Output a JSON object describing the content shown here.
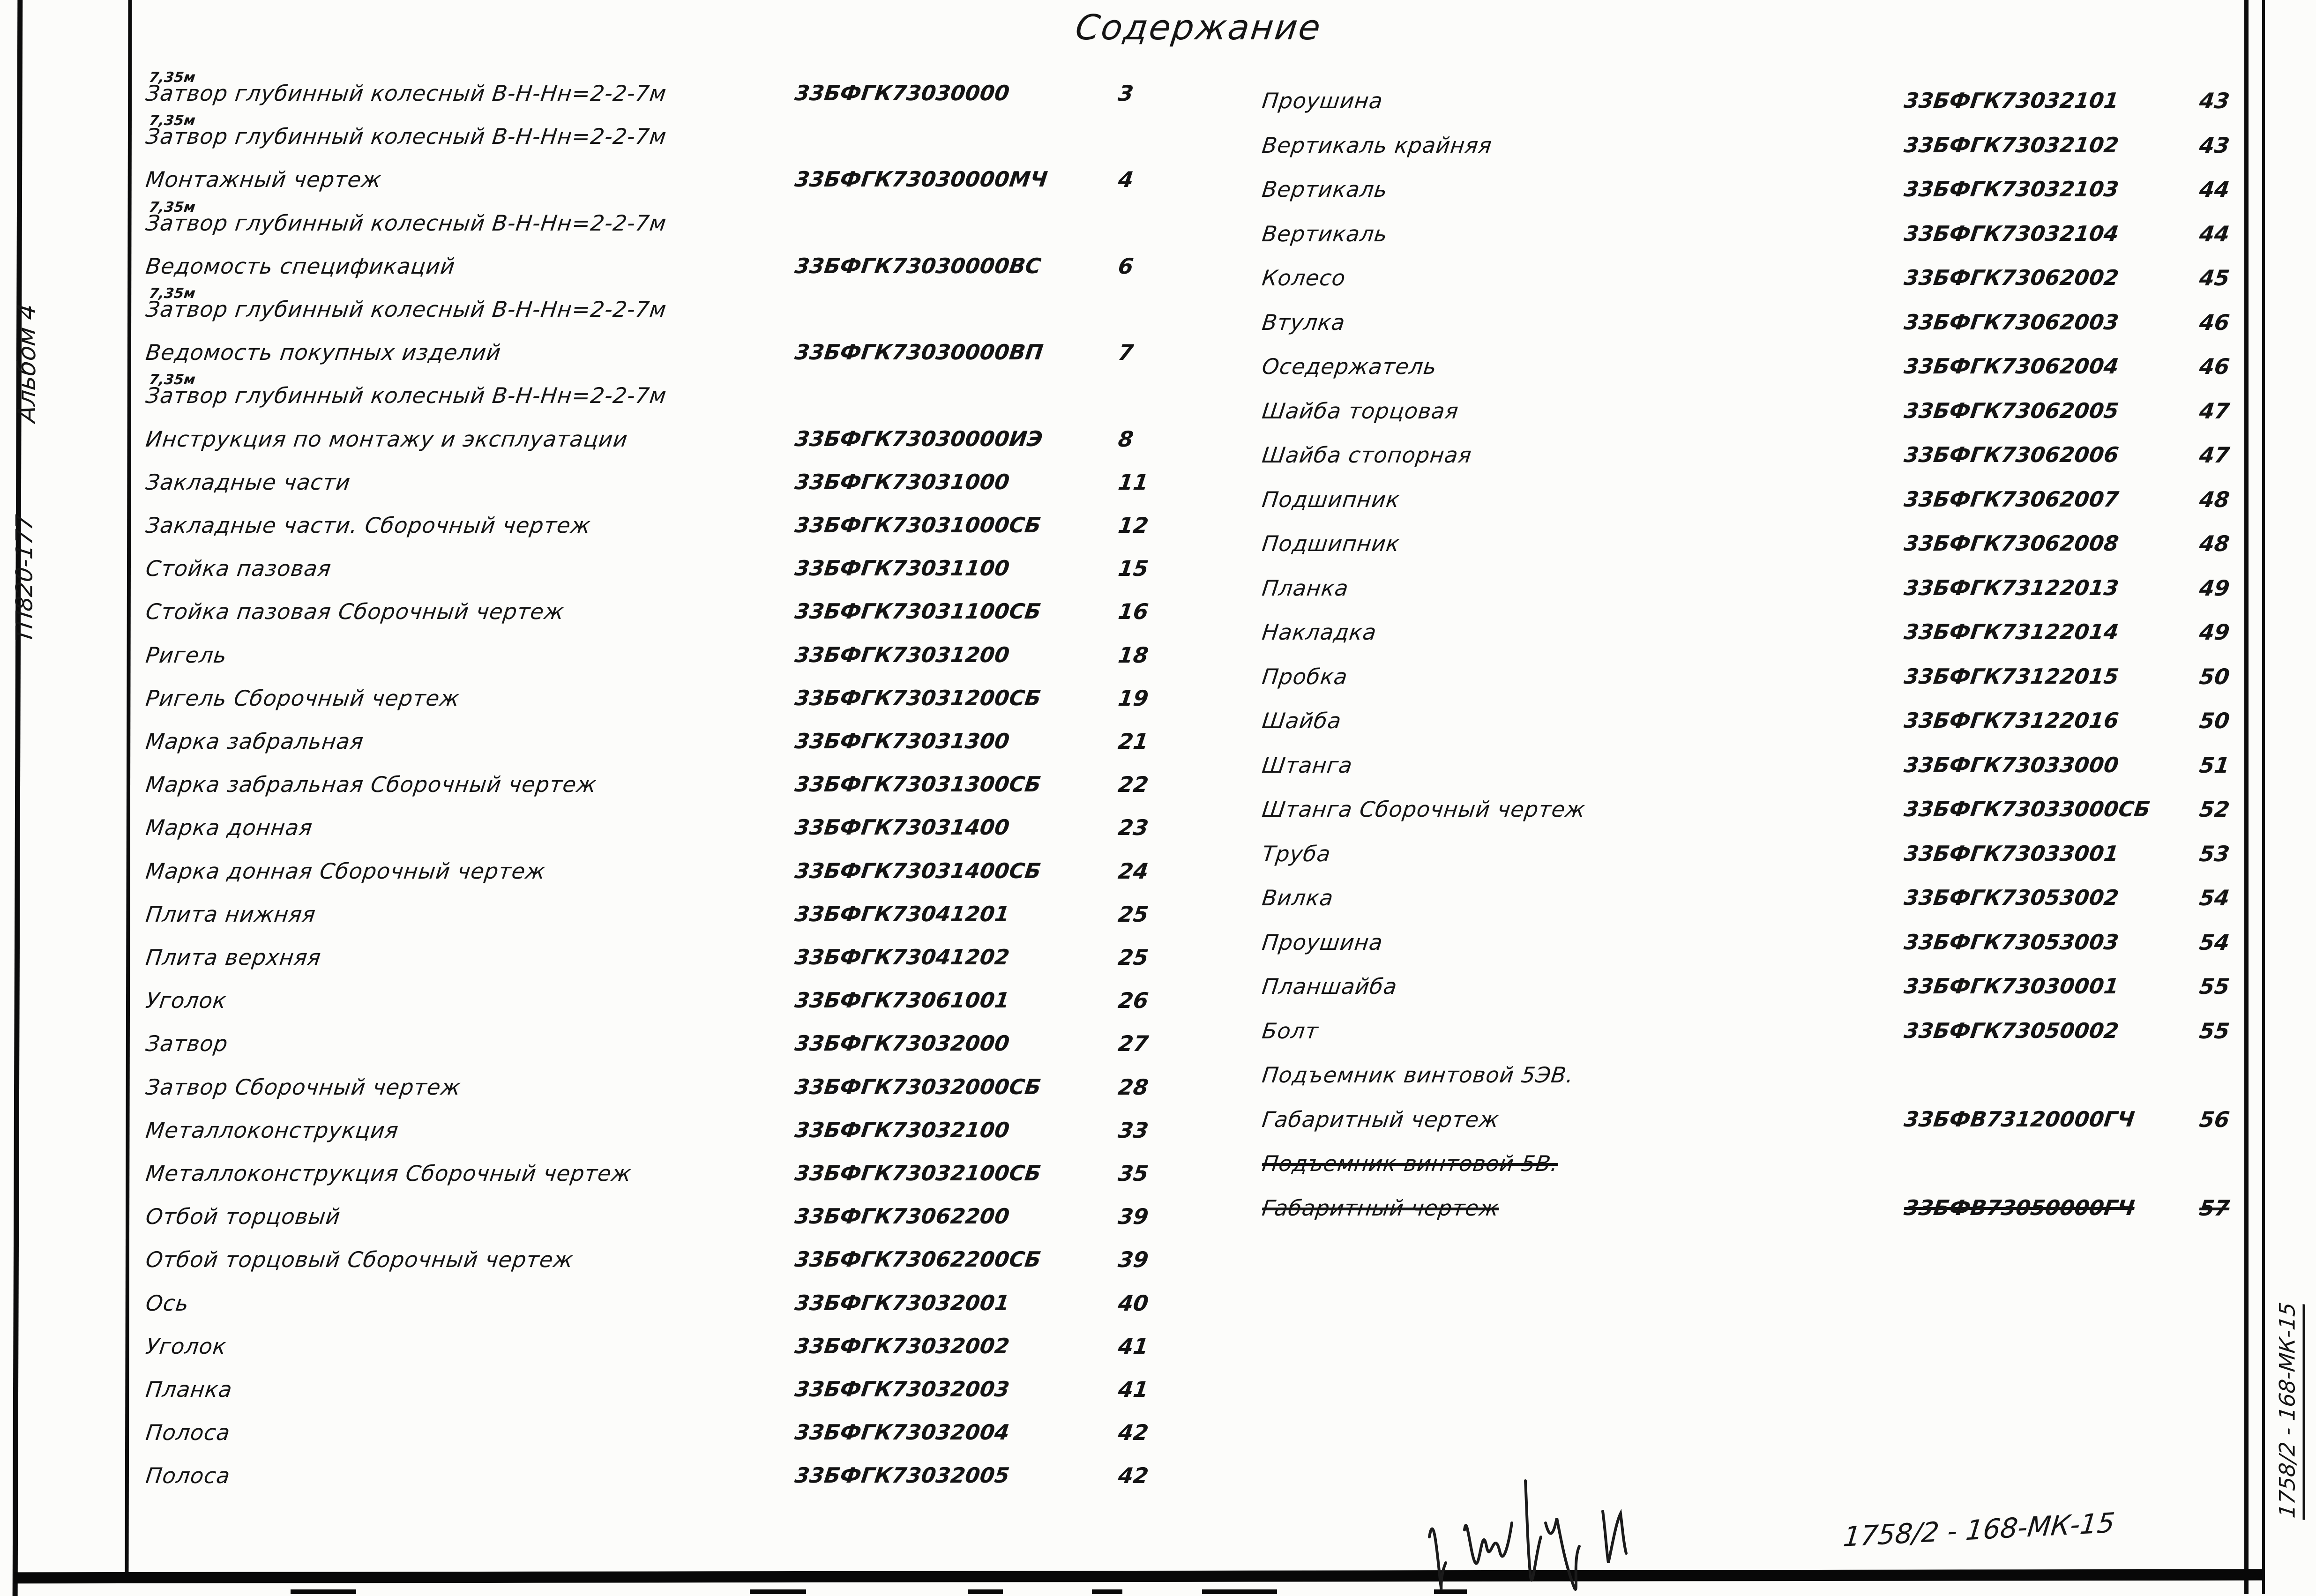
{
  "page": {
    "title": "Содержание"
  },
  "margin_left": {
    "album": "Альбом 4",
    "project": "ТП820-177"
  },
  "margin_right": {
    "code": "1758/2 - 168-МК-15"
  },
  "footer": {
    "code": "1758/2 - 168-МК-15"
  },
  "toc": {
    "left": [
      {
        "title": "Затвор глубинный колесный В-Н-Нн=2-2-7м",
        "sup": "7,35м",
        "num": "33БФГК73030000",
        "page": "3"
      },
      {
        "title": "Затвор глубинный колесный В-Н-Нн=2-2-7м",
        "sup": "7,35м"
      },
      {
        "title": "Монтажный чертеж",
        "num": "33БФГК73030000МЧ",
        "page": "4"
      },
      {
        "title": "Затвор глубинный колесный В-Н-Нн=2-2-7м",
        "sup": "7,35м"
      },
      {
        "title": "Ведомость спецификаций",
        "num": "33БФГК73030000ВС",
        "page": "6"
      },
      {
        "title": "Затвор глубинный колесный В-Н-Нн=2-2-7м",
        "sup": "7,35м"
      },
      {
        "title": "Ведомость покупных изделий",
        "num": "33БФГК73030000ВП",
        "page": "7"
      },
      {
        "title": "Затвор глубинный колесный В-Н-Нн=2-2-7м",
        "sup": "7,35м"
      },
      {
        "title": "Инструкция по монтажу и эксплуатации",
        "num": "33БФГК73030000ИЭ",
        "page": "8"
      },
      {
        "title": "Закладные части",
        "num": "33БФГК73031000",
        "page": "11"
      },
      {
        "title": "Закладные части. Сборочный чертеж",
        "num": "33БФГК73031000СБ",
        "page": "12"
      },
      {
        "title": "Стойка пазовая",
        "num": "33БФГК73031100",
        "page": "15"
      },
      {
        "title": "Стойка пазовая Сборочный чертеж",
        "num": "33БФГК73031100СБ",
        "page": "16"
      },
      {
        "title": "Ригель",
        "num": "33БФГК73031200",
        "page": "18"
      },
      {
        "title": "Ригель Сборочный чертеж",
        "num": "33БФГК73031200СБ",
        "page": "19"
      },
      {
        "title": "Марка забральная",
        "num": "33БФГК73031300",
        "page": "21"
      },
      {
        "title": "Марка забральная Сборочный чертеж",
        "num": "33БФГК73031300СБ",
        "page": "22"
      },
      {
        "title": "Марка донная",
        "num": "33БФГК73031400",
        "page": "23"
      },
      {
        "title": "Марка донная Сборочный чертеж",
        "num": "33БФГК73031400СБ",
        "page": "24"
      },
      {
        "title": "Плита нижняя",
        "num": "33БФГК73041201",
        "page": "25"
      },
      {
        "title": "Плита верхняя",
        "num": "33БФГК73041202",
        "page": "25"
      },
      {
        "title": "Уголок",
        "num": "33БФГК73061001",
        "page": "26"
      },
      {
        "title": "Затвор",
        "num": "33БФГК73032000",
        "page": "27"
      },
      {
        "title": "Затвор Сборочный чертеж",
        "num": "33БФГК73032000СБ",
        "page": "28"
      },
      {
        "title": "Металлоконструкция",
        "num": "33БФГК73032100",
        "page": "33"
      },
      {
        "title": "Металлоконструкция Сборочный чертеж",
        "num": "33БФГК73032100СБ",
        "page": "35"
      },
      {
        "title": "Отбой торцовый",
        "num": "33БФГК73062200",
        "page": "39"
      },
      {
        "title": "Отбой торцовый Сборочный чертеж",
        "num": "33БФГК73062200СБ",
        "page": "39"
      },
      {
        "title": "Ось",
        "num": "33БФГК73032001",
        "page": "40"
      },
      {
        "title": "Уголок",
        "num": "33БФГК73032002",
        "page": "41"
      },
      {
        "title": "Планка",
        "num": "33БФГК73032003",
        "page": "41"
      },
      {
        "title": "Полоса",
        "num": "33БФГК73032004",
        "page": "42"
      },
      {
        "title": "Полоса",
        "num": "33БФГК73032005",
        "page": "42"
      }
    ],
    "right": [
      {
        "title": "Проушина",
        "num": "33БФГК73032101",
        "page": "43"
      },
      {
        "title": "Вертикаль крайняя",
        "num": "33БФГК73032102",
        "page": "43"
      },
      {
        "title": "Вертикаль",
        "num": "33БФГК73032103",
        "page": "44"
      },
      {
        "title": "Вертикаль",
        "num": "33БФГК73032104",
        "page": "44"
      },
      {
        "title": "Колесо",
        "num": "33БФГК73062002",
        "page": "45"
      },
      {
        "title": "Втулка",
        "num": "33БФГК73062003",
        "page": "46"
      },
      {
        "title": "Оседержатель",
        "num": "33БФГК73062004",
        "page": "46"
      },
      {
        "title": "Шайба торцовая",
        "num": "33БФГК73062005",
        "page": "47"
      },
      {
        "title": "Шайба стопорная",
        "num": "33БФГК73062006",
        "page": "47"
      },
      {
        "title": "Подшипник",
        "num": "33БФГК73062007",
        "page": "48"
      },
      {
        "title": "Подшипник",
        "num": "33БФГК73062008",
        "page": "48"
      },
      {
        "title": "Планка",
        "num": "33БФГК73122013",
        "page": "49"
      },
      {
        "title": "Накладка",
        "num": "33БФГК73122014",
        "page": "49"
      },
      {
        "title": "Пробка",
        "num": "33БФГК73122015",
        "page": "50"
      },
      {
        "title": "Шайба",
        "num": "33БФГК73122016",
        "page": "50"
      },
      {
        "title": "Штанга",
        "num": "33БФГК73033000",
        "page": "51"
      },
      {
        "title": "Штанга Сборочный чертеж",
        "num": "33БФГК73033000СБ",
        "page": "52"
      },
      {
        "title": "Труба",
        "num": "33БФГК73033001",
        "page": "53"
      },
      {
        "title": "Вилка",
        "num": "33БФГК73053002",
        "page": "54"
      },
      {
        "title": "Проушина",
        "num": "33БФГК73053003",
        "page": "54"
      },
      {
        "title": "Планшайба",
        "num": "33БФГК73030001",
        "page": "55"
      },
      {
        "title": "Болт",
        "num": "33БФГК73050002",
        "page": "55"
      },
      {
        "title": "Подъемник винтовой 5ЭВ."
      },
      {
        "title": "Габаритный чертеж",
        "num": "33БФВ73120000ГЧ",
        "page": "56"
      },
      {
        "title": "Подъемник винтовой 5В.",
        "strike": true
      },
      {
        "title": "Габаритный чертеж",
        "num": "33БФВ73050000ГЧ",
        "page": "57",
        "strike": true
      }
    ]
  }
}
